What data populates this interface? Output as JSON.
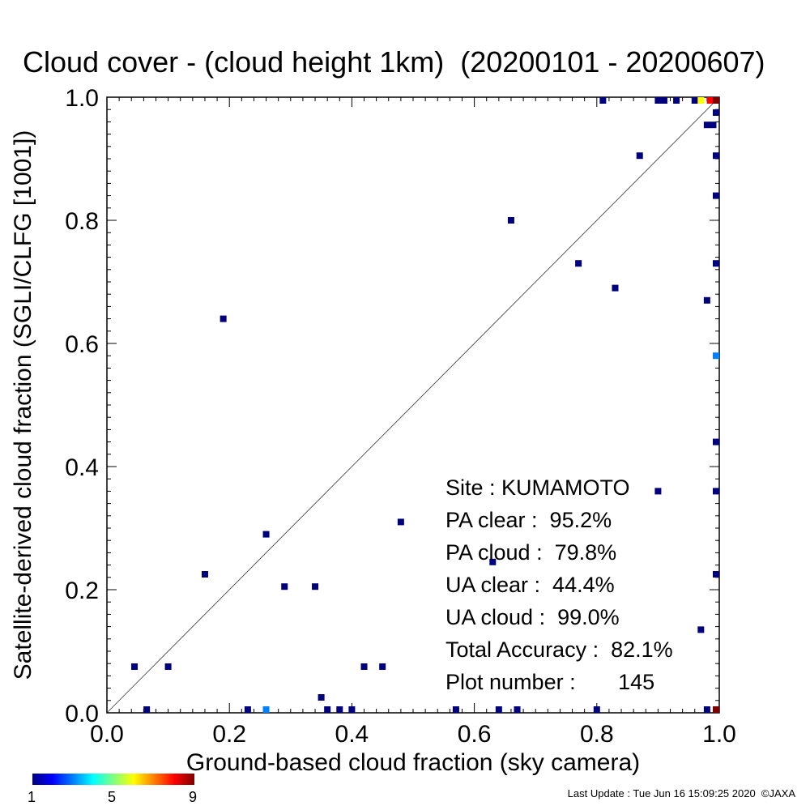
{
  "title": "Cloud cover - (cloud height 1km)  (20200101 - 20200607)",
  "stats": {
    "site": "Site : KUMAMOTO",
    "pa_clear": "PA clear :  95.2%",
    "pa_cloud": "PA cloud :  79.8%",
    "ua_clear": "UA clear :  44.4%",
    "ua_cloud": "UA cloud :  99.0%",
    "total_accuracy": "Total Accuracy :  82.1%",
    "plot_number": "Plot number :       145"
  },
  "colorbar": {
    "labels": [
      "1",
      "5",
      "9"
    ],
    "min": 1,
    "max": 9
  },
  "footer": "Last Update : Tue Jun 16 15:09:25 2020  ©JAXA",
  "chart_data": {
    "type": "scatter",
    "title": "Cloud cover - (cloud height 1km)  (20200101 - 20200607)",
    "xlabel": "Ground-based cloud fraction (sky camera)",
    "ylabel": "Satellite-derived cloud fraction (SGLI/CLFG [1001])",
    "xlim": [
      0.0,
      1.0
    ],
    "ylim": [
      0.0,
      1.0
    ],
    "xticks": [
      "0.0",
      "0.2",
      "0.4",
      "0.6",
      "0.8",
      "1.0"
    ],
    "yticks": [
      "0.0",
      "0.2",
      "0.4",
      "0.6",
      "0.8",
      "1.0"
    ],
    "reference_line": "1:1 diagonal",
    "color_meaning": "point count (1-9)",
    "points": [
      {
        "x": 0.045,
        "y": 0.075,
        "count": 1
      },
      {
        "x": 0.065,
        "y": 0.005,
        "count": 1
      },
      {
        "x": 0.1,
        "y": 0.075,
        "count": 1
      },
      {
        "x": 0.16,
        "y": 0.225,
        "count": 1
      },
      {
        "x": 0.19,
        "y": 0.64,
        "count": 1
      },
      {
        "x": 0.23,
        "y": 0.005,
        "count": 1
      },
      {
        "x": 0.26,
        "y": 0.005,
        "count": 3
      },
      {
        "x": 0.26,
        "y": 0.29,
        "count": 1
      },
      {
        "x": 0.29,
        "y": 0.205,
        "count": 1
      },
      {
        "x": 0.34,
        "y": 0.205,
        "count": 1
      },
      {
        "x": 0.35,
        "y": 0.025,
        "count": 1
      },
      {
        "x": 0.36,
        "y": 0.005,
        "count": 1
      },
      {
        "x": 0.38,
        "y": 0.005,
        "count": 1
      },
      {
        "x": 0.4,
        "y": 0.005,
        "count": 1
      },
      {
        "x": 0.42,
        "y": 0.075,
        "count": 1
      },
      {
        "x": 0.45,
        "y": 0.075,
        "count": 1
      },
      {
        "x": 0.48,
        "y": 0.31,
        "count": 1
      },
      {
        "x": 0.57,
        "y": 0.005,
        "count": 1
      },
      {
        "x": 0.63,
        "y": 0.245,
        "count": 1
      },
      {
        "x": 0.64,
        "y": 0.005,
        "count": 1
      },
      {
        "x": 0.66,
        "y": 0.8,
        "count": 1
      },
      {
        "x": 0.67,
        "y": 0.005,
        "count": 1
      },
      {
        "x": 0.77,
        "y": 0.73,
        "count": 1
      },
      {
        "x": 0.8,
        "y": 0.005,
        "count": 1
      },
      {
        "x": 0.81,
        "y": 0.995,
        "count": 1
      },
      {
        "x": 0.83,
        "y": 0.69,
        "count": 1
      },
      {
        "x": 0.87,
        "y": 0.905,
        "count": 1
      },
      {
        "x": 0.9,
        "y": 0.36,
        "count": 1
      },
      {
        "x": 0.9,
        "y": 0.995,
        "count": 1
      },
      {
        "x": 0.91,
        "y": 0.995,
        "count": 1
      },
      {
        "x": 0.93,
        "y": 0.995,
        "count": 1
      },
      {
        "x": 0.96,
        "y": 0.995,
        "count": 1
      },
      {
        "x": 0.97,
        "y": 0.135,
        "count": 1
      },
      {
        "x": 0.97,
        "y": 0.995,
        "count": 6
      },
      {
        "x": 0.98,
        "y": 0.67,
        "count": 1
      },
      {
        "x": 0.98,
        "y": 0.955,
        "count": 1
      },
      {
        "x": 0.98,
        "y": 0.005,
        "count": 1
      },
      {
        "x": 0.985,
        "y": 0.995,
        "count": 8
      },
      {
        "x": 0.99,
        "y": 0.955,
        "count": 1
      },
      {
        "x": 0.995,
        "y": 0.995,
        "count": 9
      },
      {
        "x": 0.995,
        "y": 0.975,
        "count": 1
      },
      {
        "x": 0.995,
        "y": 0.905,
        "count": 1
      },
      {
        "x": 0.995,
        "y": 0.84,
        "count": 1
      },
      {
        "x": 0.995,
        "y": 0.73,
        "count": 1
      },
      {
        "x": 0.995,
        "y": 0.58,
        "count": 3
      },
      {
        "x": 0.995,
        "y": 0.44,
        "count": 1
      },
      {
        "x": 0.995,
        "y": 0.36,
        "count": 1
      },
      {
        "x": 0.995,
        "y": 0.225,
        "count": 1
      },
      {
        "x": 0.995,
        "y": 0.005,
        "count": 9
      }
    ]
  }
}
